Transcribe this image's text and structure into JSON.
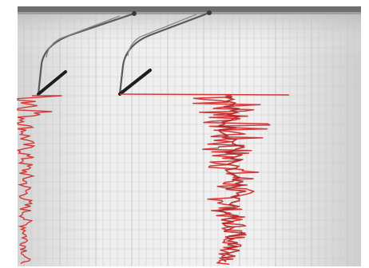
{
  "scene": {
    "subject": "seismograph",
    "colors": {
      "paper": "#ececec",
      "paper_shadow": "#c9c9c9",
      "grid_line": "#c4c4c4",
      "trace": "#d23a3a",
      "trace_dark": "#b01f1f",
      "needle_arm": "#5a5a5a",
      "needle_dark": "#1e1e1e",
      "rail": "#6e6e6e"
    },
    "icons": [
      "seismograph-drum",
      "recording-needle",
      "seismic-trace"
    ]
  }
}
